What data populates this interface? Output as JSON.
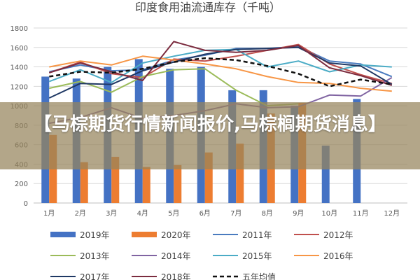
{
  "chart_data": {
    "type": "bar",
    "title": "印度食用油流通库存（千吨）",
    "categories": [
      "1月",
      "2月",
      "3月",
      "4月",
      "5月",
      "6月",
      "7月",
      "8月",
      "9月",
      "10月",
      "11月",
      "12月"
    ],
    "ylim": [
      0,
      1800
    ],
    "yticks": [
      0,
      200,
      400,
      600,
      800,
      1000,
      1200,
      1400,
      1600,
      1800
    ],
    "grid": true,
    "legend_position": "bottom",
    "series": [
      {
        "name": "2019年",
        "kind": "bar",
        "color": "#4472c4",
        "values": [
          1300,
          1280,
          1400,
          1480,
          1380,
          1400,
          1160,
          1160,
          1000,
          590,
          1070,
          null
        ]
      },
      {
        "name": "2020年",
        "kind": "bar",
        "color": "#ed7d31",
        "values": [
          700,
          420,
          475,
          370,
          390,
          520,
          610,
          920,
          1030,
          null,
          null,
          null
        ]
      },
      {
        "name": "2011年",
        "kind": "line",
        "color": "#4a7bbf",
        "values": [
          1350,
          1420,
          1360,
          1370,
          1470,
          1520,
          1590,
          1590,
          1610,
          1460,
          1430,
          1300
        ]
      },
      {
        "name": "2012年",
        "kind": "line",
        "color": "#c0504d",
        "values": [
          1340,
          1450,
          1330,
          1290,
          1480,
          1460,
          1510,
          1570,
          1630,
          1430,
          1320,
          1230
        ]
      },
      {
        "name": "2013年",
        "kind": "line",
        "color": "#9bbb59",
        "values": [
          1180,
          1250,
          1140,
          1300,
          1370,
          1380,
          1160,
          1000,
          1020,
          null,
          null,
          null
        ]
      },
      {
        "name": "2014年",
        "kind": "line",
        "color": "#8064a2",
        "values": [
          820,
          880,
          980,
          870,
          900,
          950,
          1020,
          980,
          990,
          1110,
          1100,
          1290
        ]
      },
      {
        "name": "2015年",
        "kind": "line",
        "color": "#4bacc6",
        "values": [
          1250,
          1370,
          1240,
          1440,
          1510,
          1570,
          1580,
          1400,
          1460,
          1350,
          1420,
          1400
        ]
      },
      {
        "name": "2016年",
        "kind": "line",
        "color": "#f79646",
        "values": [
          1400,
          1460,
          1420,
          1510,
          1470,
          1430,
          1380,
          1300,
          1240,
          1230,
          1180,
          1150
        ]
      },
      {
        "name": "2017年",
        "kind": "line",
        "color": "#1f3864",
        "values": [
          1080,
          1230,
          1220,
          1360,
          1450,
          1530,
          1580,
          1590,
          1600,
          1440,
          1410,
          1220
        ]
      },
      {
        "name": "2018年",
        "kind": "line",
        "color": "#7b2c3f",
        "values": [
          1340,
          1440,
          1350,
          1260,
          1660,
          1570,
          1550,
          1570,
          1620,
          1390,
          1310,
          1210
        ]
      },
      {
        "name": "五年均值",
        "kind": "dashed",
        "color": "#111111",
        "values": [
          1300,
          1350,
          1340,
          1380,
          1450,
          1490,
          1470,
          1410,
          1330,
          1200,
          1270,
          1220
        ]
      }
    ]
  },
  "overlay": {
    "headline": "【马棕期货行情新闻报价,马棕榈期货消息】"
  }
}
